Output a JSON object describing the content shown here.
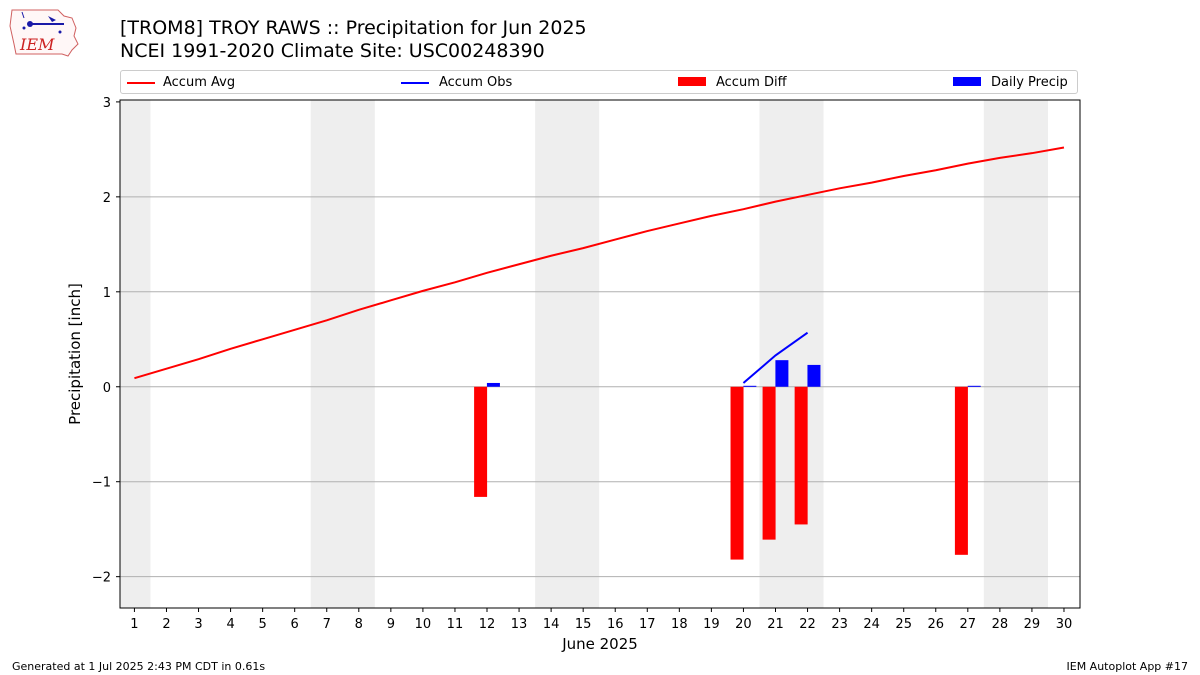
{
  "header": {
    "logo_text": "IEM",
    "title_line1": "[TROM8] TROY RAWS :: Precipitation for Jun 2025",
    "title_line2": "NCEI 1991-2020 Climate Site: USC00248390"
  },
  "legend": {
    "items": [
      {
        "label": "Accum Avg",
        "color": "#ff0000",
        "kind": "line"
      },
      {
        "label": "Accum Obs",
        "color": "#0000ff",
        "kind": "line"
      },
      {
        "label": "Accum Diff",
        "color": "#ff0000",
        "kind": "bar"
      },
      {
        "label": "Daily Precip",
        "color": "#0000ff",
        "kind": "bar"
      }
    ]
  },
  "footer": {
    "left": "Generated at 1 Jul 2025 2:43 PM CDT in 0.61s",
    "right": "IEM Autoplot App #17"
  },
  "chart_data": {
    "type": "bar",
    "xlabel": "June 2025",
    "ylabel": "Precipitation [inch]",
    "x": [
      1,
      2,
      3,
      4,
      5,
      6,
      7,
      8,
      9,
      10,
      11,
      12,
      13,
      14,
      15,
      16,
      17,
      18,
      19,
      20,
      21,
      22,
      23,
      24,
      25,
      26,
      27,
      28,
      29,
      30
    ],
    "xticks": [
      "1",
      "2",
      "3",
      "4",
      "5",
      "6",
      "7",
      "8",
      "9",
      "10",
      "11",
      "12",
      "13",
      "14",
      "15",
      "16",
      "17",
      "18",
      "19",
      "20",
      "21",
      "22",
      "23",
      "24",
      "25",
      "26",
      "27",
      "28",
      "29",
      "30"
    ],
    "xlim": [
      0.55,
      30.5
    ],
    "ylim": [
      -2.33,
      3.02
    ],
    "yticks": [
      -2,
      -1,
      0,
      1,
      2,
      3
    ],
    "ytick_labels": [
      "−2",
      "−1",
      "0",
      "1",
      "2",
      "3"
    ],
    "grid": "horizontal",
    "weekend_shading": [
      [
        0.5,
        1.5
      ],
      [
        6.5,
        8.5
      ],
      [
        13.5,
        15.5
      ],
      [
        20.5,
        22.5
      ],
      [
        27.5,
        29.5
      ]
    ],
    "shade_color": "#eeeeee",
    "series": [
      {
        "name": "Accum Avg",
        "kind": "line",
        "color": "#ff0000",
        "x": [
          1,
          2,
          3,
          4,
          5,
          6,
          7,
          8,
          9,
          10,
          11,
          12,
          13,
          14,
          15,
          16,
          17,
          18,
          19,
          20,
          21,
          22,
          23,
          24,
          25,
          26,
          27,
          28,
          29,
          30
        ],
        "values": [
          0.09,
          0.19,
          0.29,
          0.4,
          0.5,
          0.6,
          0.7,
          0.81,
          0.91,
          1.01,
          1.1,
          1.2,
          1.29,
          1.38,
          1.46,
          1.55,
          1.64,
          1.72,
          1.8,
          1.87,
          1.95,
          2.02,
          2.09,
          2.15,
          2.22,
          2.28,
          2.35,
          2.41,
          2.46,
          2.52
        ]
      },
      {
        "name": "Accum Obs",
        "kind": "line",
        "color": "#0000ff",
        "x": [
          20,
          21,
          22
        ],
        "values": [
          0.04,
          0.33,
          0.57
        ]
      },
      {
        "name": "Accum Diff",
        "kind": "bar",
        "color": "#ff0000",
        "offset": -0.2,
        "x": [
          12,
          20,
          21,
          22,
          27
        ],
        "values": [
          -1.16,
          -1.82,
          -1.61,
          -1.45,
          -1.77
        ]
      },
      {
        "name": "Daily Precip",
        "kind": "bar",
        "color": "#0000ff",
        "offset": 0.2,
        "x": [
          12,
          20,
          21,
          22,
          27
        ],
        "values": [
          0.04,
          0.01,
          0.28,
          0.23,
          0.01
        ]
      }
    ]
  }
}
